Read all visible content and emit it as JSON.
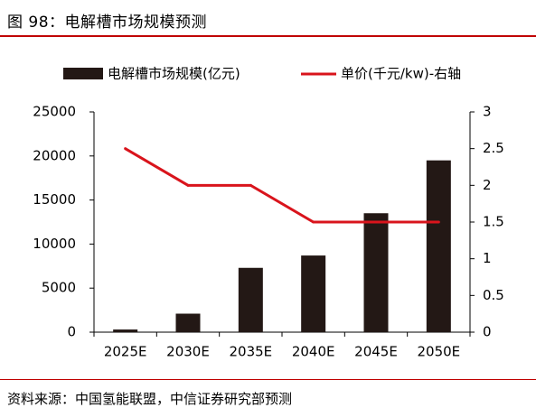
{
  "figure_title": "图 98：电解槽市场规模预测",
  "source_note": "资料来源：中国氢能联盟，中信证券研究部预测",
  "colors": {
    "bar": "#231815",
    "line": "#d9141c",
    "rule": "#c00000"
  },
  "chart_data": {
    "type": "bar",
    "categories": [
      "2025E",
      "2030E",
      "2035E",
      "2040E",
      "2045E",
      "2050E"
    ],
    "series": [
      {
        "name": "电解槽市场规模(亿元)",
        "type": "bar",
        "axis": "left",
        "values": [
          300,
          2100,
          7300,
          8700,
          13500,
          19500
        ]
      },
      {
        "name": "单价(千元/kw)-右轴",
        "type": "line",
        "axis": "right",
        "values": [
          2.5,
          2.0,
          2.0,
          1.5,
          1.5,
          1.5
        ]
      }
    ],
    "y_left": {
      "min": 0,
      "max": 25000,
      "ticks": [
        "0",
        "5000",
        "10000",
        "15000",
        "20000",
        "25000"
      ]
    },
    "y_right": {
      "min": 0,
      "max": 3,
      "ticks": [
        "0",
        "0.5",
        "1",
        "1.5",
        "2",
        "2.5",
        "3"
      ]
    },
    "legend": {
      "placement": "top"
    },
    "grid": false
  }
}
